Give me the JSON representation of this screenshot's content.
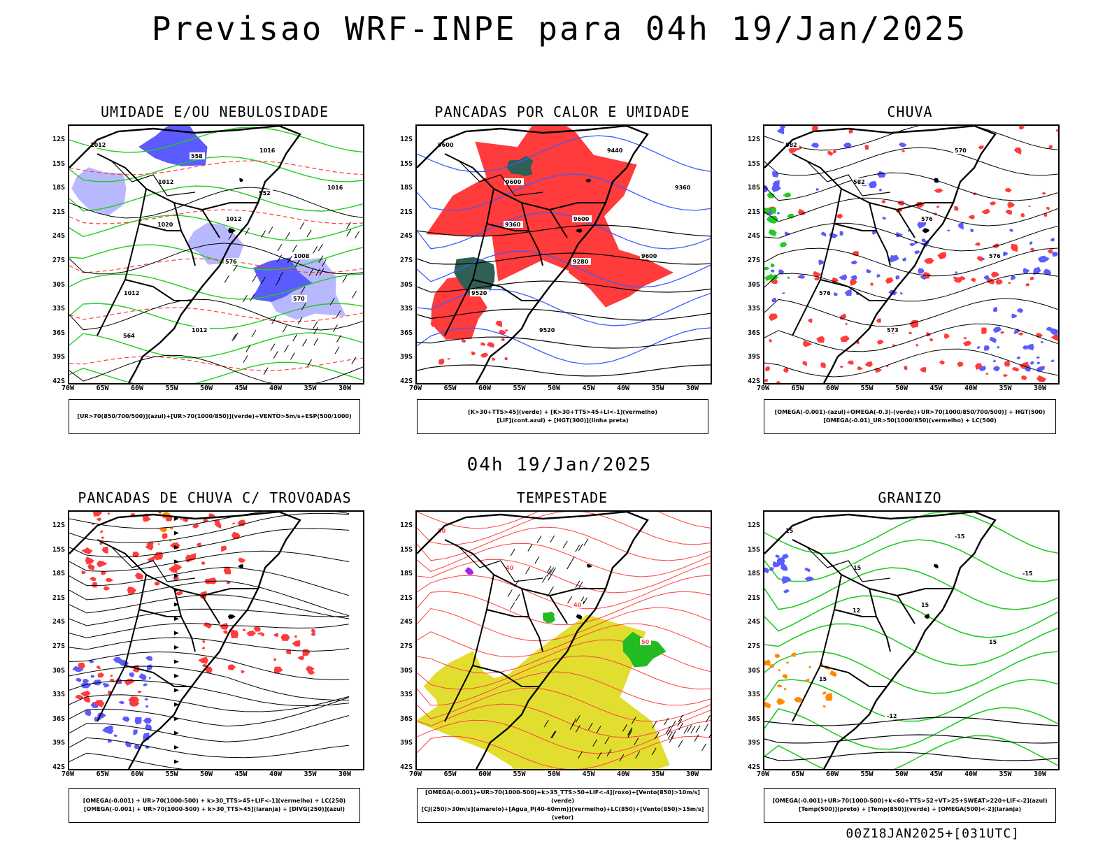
{
  "header": {
    "title": "Previsao WRF-INPE  para 04h 19/Jan/2025"
  },
  "middle_date": "04h 19/Jan/2025",
  "footer": {
    "stamp": "00Z18JAN2025+[031UTC]"
  },
  "axes": {
    "lat_ticks": [
      "12S",
      "15S",
      "18S",
      "21S",
      "24S",
      "27S",
      "30S",
      "33S",
      "36S",
      "39S",
      "42S"
    ],
    "lon_ticks": [
      "70W",
      "65W",
      "60W",
      "55W",
      "50W",
      "45W",
      "40W",
      "35W",
      "30W"
    ]
  },
  "panels": [
    {
      "title": "UMIDADE E/OU NEBULOSIDADE",
      "legend": [
        "[UR>70(850/700/500)](azul)+[UR>70(1000/850)](verde)+VENTO>5m/s+ESP(500/1000)"
      ],
      "contour_labels": [
        "1012",
        "1012",
        "1012",
        "1008",
        "1012",
        "1012",
        "1016",
        "1016",
        "1020",
        "576",
        "570",
        "564",
        "558",
        "552"
      ]
    },
    {
      "title": "PANCADAS POR CALOR E UMIDADE",
      "legend": [
        "[K>30+TTS>45](verde) + [K>30+TTS>45+LI<-1](vermelho)",
        "[LIF](cont.azul) + [HGT(300)](linha preta)"
      ],
      "contour_labels": [
        "9600",
        "9600",
        "9600",
        "9600",
        "9520",
        "9520",
        "9440",
        "9360",
        "9360",
        "9280"
      ]
    },
    {
      "title": "CHUVA",
      "legend": [
        "[OMEGA(-0.001)-(azul)+OMEGA(-0.3)-(verde)+UR>70(1000/850/700/500)] + HGT(500)",
        "[OMEGA(-0.01)_UR>50(1000/850)(vermelho) + LC(500)"
      ],
      "contour_labels": [
        "582",
        "582",
        "576",
        "576",
        "576",
        "573",
        "570"
      ]
    },
    {
      "title": "PANCADAS DE CHUVA C/ TROVOADAS",
      "legend": [
        "[OMEGA(-0.001) + UR>70(1000-500) + k>30_TTS>45+LIF<-1](vermelho) + LC(250)",
        "[OMEGA(-0.001) + UR>70(1000-500) + k>30_TTS>45](laranja) + [DIVG(250)](azul)"
      ],
      "contour_labels": []
    },
    {
      "title": "TEMPESTADE",
      "legend": [
        "[OMEGA(-0.001)+UR>70(1000-500)+k>35_TTS>50+LIF<-4](roxo)+[Vento(850)>10m/s](verde)",
        "[CJ(250)>30m/s](amarelo)+[Agua_P(40-60mm)](vermelho)+LC(850)+[Vento(850)>15m/s](vetor)"
      ],
      "contour_labels": [
        "50",
        "40",
        "40",
        "50"
      ]
    },
    {
      "title": "GRANIZO",
      "legend": [
        "[OMEGA(-0.001)+UR>70(1000-500)+k<60+TTS>52+VT>25+SWEAT>220+LIF<-2](azul)",
        "[Temp(500)](preto) + [Temp(850)](verde) + [OMEGA(500)<-2](laranja)"
      ],
      "contour_labels": [
        "15",
        "15",
        "15",
        "15",
        "15",
        "-12",
        "-15",
        "-15",
        "12"
      ]
    }
  ],
  "colors": {
    "blue_fill": "#5b5bff",
    "light_blue": "#b8b8ff",
    "green": "#22cc22",
    "red": "#ff3b3b",
    "dark_green": "#2f5f55",
    "yellow": "#e2de30",
    "orange": "#ff8a00",
    "purple": "#a020f0"
  }
}
